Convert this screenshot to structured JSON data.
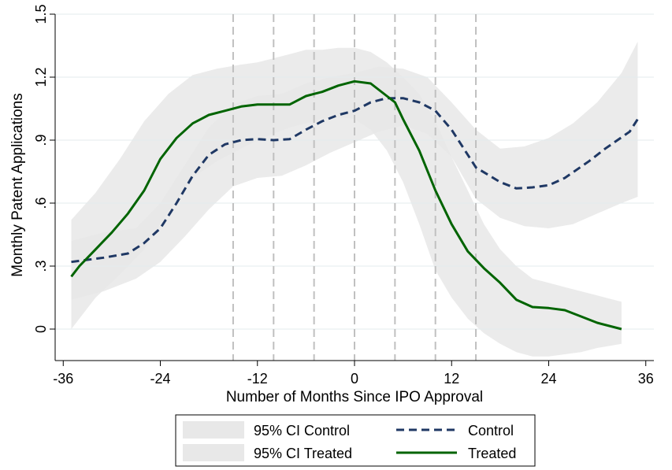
{
  "chart_data": {
    "type": "line",
    "xlabel": "Number of Months Since IPO Approval",
    "ylabel": "Monthly Patent Applications",
    "xlim": [
      -37,
      37
    ],
    "ylim": [
      -0.15,
      1.5
    ],
    "xticks": [
      -36,
      -24,
      -12,
      0,
      12,
      24,
      36
    ],
    "xtick_labels": [
      "-36",
      "-24",
      "-12",
      "0",
      "12",
      "24",
      "36"
    ],
    "yticks": [
      0,
      0.3,
      0.6,
      0.9,
      1.2,
      1.5
    ],
    "ytick_labels": [
      "0",
      ".3",
      ".6",
      ".9",
      "1.2",
      "1.5"
    ],
    "vertical_reference_lines": [
      -15,
      -10,
      -5,
      0,
      5,
      10,
      15
    ],
    "grid": true,
    "legend_position": "bottom",
    "legend": [
      {
        "label": "95% CI Control",
        "kind": "band"
      },
      {
        "label": "Control",
        "kind": "dashed-line"
      },
      {
        "label": "95% CI Treated",
        "kind": "band"
      },
      {
        "label": "Treated",
        "kind": "line"
      }
    ],
    "series": [
      {
        "name": "Control",
        "style": "dashed",
        "color": "#1f3864",
        "x": [
          -35,
          -31,
          -28,
          -26,
          -24,
          -22,
          -20,
          -18,
          -16,
          -14,
          -12,
          -10,
          -8,
          -6,
          -4,
          -2,
          0,
          2,
          4,
          6,
          8,
          10,
          12,
          15,
          18,
          20,
          22,
          24,
          26,
          29,
          31,
          34,
          35
        ],
        "y": [
          0.32,
          0.34,
          0.36,
          0.41,
          0.48,
          0.6,
          0.73,
          0.83,
          0.88,
          0.9,
          0.905,
          0.9,
          0.905,
          0.95,
          0.99,
          1.02,
          1.04,
          1.08,
          1.1,
          1.1,
          1.08,
          1.04,
          0.95,
          0.77,
          0.7,
          0.67,
          0.675,
          0.685,
          0.72,
          0.8,
          0.86,
          0.94,
          1.0
        ]
      },
      {
        "name": "Treated",
        "style": "solid",
        "color": "#006400",
        "x": [
          -35,
          -34,
          -32,
          -30,
          -28,
          -26,
          -24,
          -22,
          -20,
          -18,
          -16,
          -14,
          -12,
          -10,
          -8,
          -6,
          -5,
          -4,
          -2,
          0,
          2,
          4,
          5,
          6,
          8,
          10,
          12,
          14,
          16,
          18,
          20,
          22,
          24,
          26,
          28,
          30,
          33
        ],
        "y": [
          0.25,
          0.3,
          0.38,
          0.46,
          0.55,
          0.66,
          0.81,
          0.91,
          0.98,
          1.02,
          1.04,
          1.06,
          1.07,
          1.07,
          1.07,
          1.11,
          1.12,
          1.13,
          1.16,
          1.18,
          1.17,
          1.11,
          1.08,
          1.0,
          0.85,
          0.66,
          0.5,
          0.37,
          0.29,
          0.22,
          0.14,
          0.105,
          0.1,
          0.09,
          0.06,
          0.03,
          0.0
        ]
      }
    ],
    "bands": [
      {
        "name": "95% CI Treated",
        "color": "#e8e8e8",
        "x": [
          -35,
          -32,
          -29,
          -26,
          -23,
          -20,
          -17,
          -14,
          -12,
          -10,
          -8,
          -6,
          -4,
          -2,
          0,
          2,
          4,
          6,
          8,
          10,
          12,
          14,
          16,
          18,
          20,
          22,
          24,
          26,
          28,
          30,
          33
        ],
        "lower": [
          0.0,
          0.15,
          0.26,
          0.38,
          0.56,
          0.72,
          0.8,
          0.86,
          0.9,
          0.93,
          0.96,
          0.98,
          1.0,
          1.01,
          1.0,
          0.95,
          0.85,
          0.7,
          0.5,
          0.28,
          0.15,
          0.05,
          -0.02,
          -0.07,
          -0.11,
          -0.13,
          -0.13,
          -0.12,
          -0.11,
          -0.09,
          -0.07
        ],
        "upper": [
          0.52,
          0.65,
          0.81,
          0.99,
          1.12,
          1.21,
          1.24,
          1.26,
          1.27,
          1.29,
          1.31,
          1.33,
          1.33,
          1.34,
          1.34,
          1.32,
          1.27,
          1.2,
          1.12,
          0.99,
          0.82,
          0.66,
          0.5,
          0.38,
          0.3,
          0.24,
          0.22,
          0.2,
          0.18,
          0.16,
          0.13
        ]
      },
      {
        "name": "95% CI Control",
        "color": "#e8e8e8",
        "x": [
          -35,
          -31,
          -27,
          -24,
          -21,
          -18,
          -15,
          -12,
          -9,
          -6,
          -3,
          0,
          3,
          6,
          9,
          12,
          15,
          18,
          21,
          24,
          27,
          30,
          33,
          35
        ],
        "lower": [
          0.14,
          0.18,
          0.24,
          0.32,
          0.44,
          0.57,
          0.68,
          0.72,
          0.73,
          0.78,
          0.84,
          0.89,
          0.94,
          0.97,
          0.93,
          0.82,
          0.62,
          0.53,
          0.49,
          0.48,
          0.5,
          0.55,
          0.6,
          0.63
        ],
        "upper": [
          0.42,
          0.46,
          0.48,
          0.6,
          0.78,
          0.96,
          1.07,
          1.11,
          1.12,
          1.17,
          1.2,
          1.22,
          1.25,
          1.24,
          1.2,
          1.08,
          0.95,
          0.86,
          0.87,
          0.91,
          0.98,
          1.08,
          1.22,
          1.37
        ]
      }
    ]
  }
}
